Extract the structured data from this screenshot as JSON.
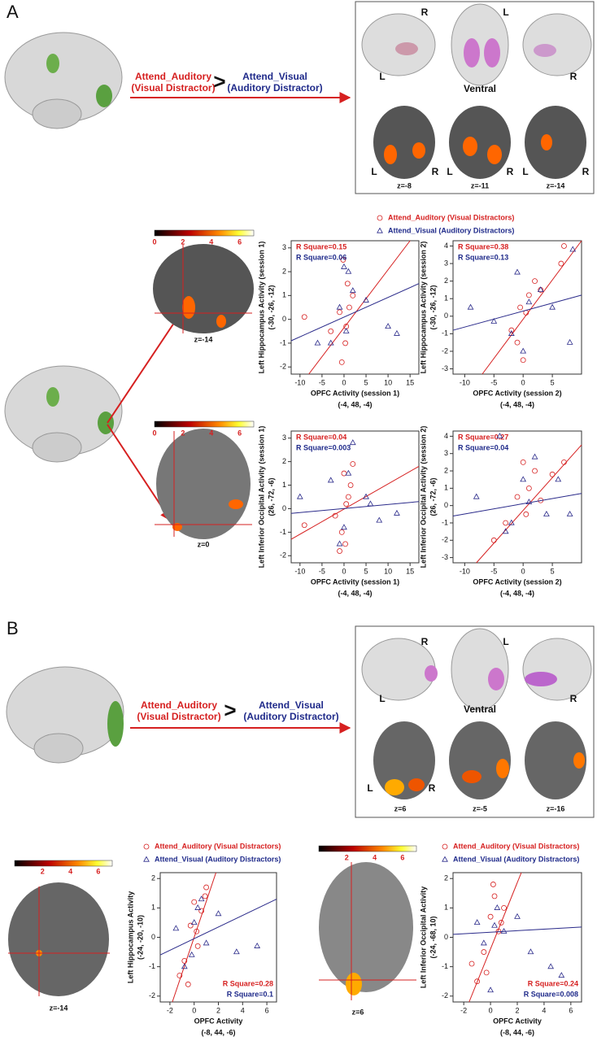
{
  "panel_a": {
    "label": "A",
    "contrast": {
      "left": "Attend_Auditory",
      "left_note": "(Visual Distractor)",
      "operator": ">",
      "right": "Attend_Visual",
      "right_note": "(Auditory Distractor)"
    },
    "view_labels": [
      "R",
      "L",
      "L",
      "R",
      "Ventral"
    ],
    "slice_labels": [
      "z=-8",
      "z=-11",
      "z=-14"
    ],
    "side_labels": [
      "L",
      "R",
      "L",
      "R",
      "L",
      "R"
    ],
    "map_slices": [
      "z=-14",
      "z=0"
    ],
    "colorbar_ticks": [
      0,
      2,
      4,
      6
    ],
    "legend": [
      "Attend_Auditory (Visual Distractors)",
      "Attend_Visual (Auditory Distractors)"
    ]
  },
  "panel_b": {
    "label": "B",
    "contrast": {
      "left": "Attend_Auditory",
      "left_note": "(Visual Distractor)",
      "operator": ">",
      "right": "Attend_Visual",
      "right_note": "(Auditory Distractor)"
    },
    "view_labels": [
      "R",
      "L",
      "L",
      "R",
      "Ventral"
    ],
    "slice_labels": [
      "z=6",
      "z=-5",
      "z=-16"
    ],
    "side_labels": [
      "L",
      "R"
    ],
    "map_slices": [
      "z=-14",
      "z=6"
    ],
    "colorbar_ticks": [
      2,
      4,
      6
    ]
  },
  "chart_data": [
    {
      "type": "scatter",
      "ylabel": [
        "Left Hippocampus Activity (session 1)",
        "(-30, -26, -12)"
      ],
      "xlabel": [
        "OPFC Activity (session 1)",
        "(-4, 48, -4)"
      ],
      "xlim": [
        -12,
        17
      ],
      "ylim": [
        -2.3,
        3.3
      ],
      "xticks": [
        -10,
        -5,
        0,
        5,
        10,
        15
      ],
      "yticks": [
        -2,
        -1,
        0,
        1,
        2,
        3
      ],
      "series": [
        {
          "marker": "circle",
          "color": "#d62020",
          "x": [
            -0.5,
            0.3,
            1.2,
            -1,
            0.8,
            -0.2,
            2,
            -3,
            0.5,
            -9
          ],
          "y": [
            -1.8,
            -1,
            0.5,
            0.3,
            1.5,
            2.5,
            1,
            -0.5,
            -0.3,
            0.1
          ],
          "fit_x": [
            -8,
            15
          ],
          "fit_y": [
            -2.3,
            3.3
          ],
          "r_square": "R Square=0.15"
        },
        {
          "marker": "triangle",
          "color": "#2a2a8a",
          "x": [
            -1,
            0.5,
            2,
            -3,
            1,
            5,
            10,
            -6,
            0,
            12
          ],
          "y": [
            0.5,
            -0.5,
            1.2,
            -1,
            2,
            0.8,
            -0.3,
            -1,
            2.2,
            -0.6
          ],
          "fit_x": [
            -12,
            17
          ],
          "fit_y": [
            -0.9,
            1.5
          ],
          "r_square": "R Square=0.06"
        }
      ]
    },
    {
      "type": "scatter",
      "ylabel": [
        "Left Hippocampus Activity (session 2)",
        "(-30, -26, -12)"
      ],
      "xlabel": [
        "OPFC Activity (session 2)",
        "(-4, 48, -4)"
      ],
      "xlim": [
        -12,
        10
      ],
      "ylim": [
        -3.3,
        4.3
      ],
      "xticks": [
        -10,
        -5,
        0,
        5
      ],
      "yticks": [
        -3,
        -2,
        -1,
        0,
        1,
        2,
        3,
        4
      ],
      "series": [
        {
          "marker": "circle",
          "color": "#d62020",
          "x": [
            -1,
            0.5,
            1,
            -2,
            2,
            3,
            7,
            0,
            -0.5,
            6.5
          ],
          "y": [
            -1.5,
            0.2,
            1.2,
            -0.8,
            2,
            1.5,
            4,
            -2.5,
            0.5,
            3
          ],
          "fit_x": [
            -7,
            10
          ],
          "fit_y": [
            -3.3,
            4.3
          ],
          "r_square": "R Square=0.38"
        },
        {
          "marker": "triangle",
          "color": "#2a2a8a",
          "x": [
            -9,
            -5,
            1,
            -2,
            3,
            5,
            8,
            0,
            -1,
            8.5
          ],
          "y": [
            0.5,
            -0.3,
            0.8,
            -1,
            1.5,
            0.5,
            -1.5,
            -2,
            2.5,
            3.8
          ],
          "fit_x": [
            -12,
            10
          ],
          "fit_y": [
            -0.8,
            1.2
          ],
          "r_square": "R Square=0.13"
        }
      ]
    },
    {
      "type": "scatter",
      "ylabel": [
        "Left Inferior Occipital Activity (session 1)",
        "(26, -72, -6)"
      ],
      "xlabel": [
        "OPFC Activity (session 1)",
        "(-4, 48, -4)"
      ],
      "xlim": [
        -12,
        17
      ],
      "ylim": [
        -2.3,
        3.3
      ],
      "xticks": [
        -10,
        -5,
        0,
        5,
        10,
        15
      ],
      "yticks": [
        -2,
        -1,
        0,
        1,
        2,
        3
      ],
      "series": [
        {
          "marker": "circle",
          "color": "#d62020",
          "x": [
            -9,
            -1,
            0,
            1,
            2,
            -0.5,
            0.5,
            1.5,
            -2,
            0.3
          ],
          "y": [
            -0.7,
            -1.8,
            1.5,
            0.5,
            1.9,
            -1,
            0.2,
            1,
            -0.3,
            -1.5
          ],
          "fit_x": [
            -12,
            17
          ],
          "fit_y": [
            -1.3,
            1.8
          ],
          "r_square": "R Square=0.04"
        },
        {
          "marker": "triangle",
          "color": "#2a2a8a",
          "x": [
            -10,
            -3,
            0,
            2,
            5,
            12,
            8,
            -1,
            1,
            6
          ],
          "y": [
            0.5,
            1.2,
            -0.8,
            2.8,
            0.5,
            -0.2,
            -0.5,
            -1.5,
            1.5,
            0.2
          ],
          "fit_x": [
            -12,
            17
          ],
          "fit_y": [
            -0.2,
            0.3
          ],
          "r_square": "R Square=0.003"
        }
      ]
    },
    {
      "type": "scatter",
      "ylabel": [
        "Left Inferior Occipital Activity (session 2)",
        "(26, -72, -6)"
      ],
      "xlabel": [
        "OPFC Activity (session 2)",
        "(-4, 48, -4)"
      ],
      "xlim": [
        -12,
        10
      ],
      "ylim": [
        -3.3,
        4.3
      ],
      "xticks": [
        -10,
        -5,
        0,
        5
      ],
      "yticks": [
        -3,
        -2,
        -1,
        0,
        1,
        2,
        3,
        4
      ],
      "series": [
        {
          "marker": "circle",
          "color": "#d62020",
          "x": [
            -3,
            -1,
            0,
            1,
            2,
            5,
            7,
            -5,
            0.5,
            3
          ],
          "y": [
            -1,
            0.5,
            2.5,
            1,
            2,
            1.8,
            2.5,
            -2,
            -0.5,
            0.3
          ],
          "fit_x": [
            -8,
            10
          ],
          "fit_y": [
            -3.3,
            3.5
          ],
          "r_square": "R Square=0.27"
        },
        {
          "marker": "triangle",
          "color": "#2a2a8a",
          "x": [
            -8,
            -2,
            0,
            1,
            4,
            6,
            8,
            -3,
            2,
            -4
          ],
          "y": [
            0.5,
            -1,
            1.5,
            0.2,
            -0.5,
            1.5,
            -0.5,
            -1.5,
            2.8,
            4
          ],
          "fit_x": [
            -12,
            10
          ],
          "fit_y": [
            -0.6,
            0.7
          ],
          "r_square": "R Square=0.04"
        }
      ]
    },
    {
      "type": "scatter",
      "ylabel": [
        "Left Hippocampus Activity",
        "(-24, -20, -10)"
      ],
      "xlabel": [
        "OPFC Activity",
        "(-8, 44, -6)"
      ],
      "xlim": [
        -2.8,
        6.8
      ],
      "ylim": [
        -2.2,
        2.2
      ],
      "xticks": [
        -2,
        0,
        2,
        4,
        6
      ],
      "yticks": [
        -2,
        -1,
        0,
        1,
        2
      ],
      "series": [
        {
          "name": "Attend_Auditory (Visual Distractors)",
          "marker": "circle",
          "color": "#d62020",
          "x": [
            -1.2,
            -0.8,
            -0.3,
            0,
            0.3,
            0.6,
            1,
            -0.5,
            0.2,
            0.9
          ],
          "y": [
            -1.3,
            -0.8,
            0.4,
            1.2,
            -0.3,
            0.9,
            1.7,
            -1.6,
            0.2,
            1.4
          ],
          "fit_x": [
            -1.8,
            1.8
          ],
          "fit_y": [
            -2.2,
            2.2
          ],
          "r_square": "R Square=0.28"
        },
        {
          "name": "Attend_Visual (Auditory Distractors)",
          "marker": "triangle",
          "color": "#2a2a8a",
          "x": [
            -1.5,
            -0.8,
            0,
            0.3,
            1,
            2,
            3.5,
            5.2,
            0.6,
            -0.2
          ],
          "y": [
            0.3,
            -1,
            0.5,
            1,
            -0.2,
            0.8,
            -0.5,
            -0.3,
            1.3,
            -0.6
          ],
          "fit_x": [
            -2.8,
            6.8
          ],
          "fit_y": [
            -0.6,
            1.3
          ],
          "r_square": "R Square=0.1"
        }
      ]
    },
    {
      "type": "scatter",
      "ylabel": [
        "Left Inferior Occipital Activity",
        "(-24, -68, 10)"
      ],
      "xlabel": [
        "OPFC Activity",
        "(-8, 44, -6)"
      ],
      "xlim": [
        -2.8,
        6.8
      ],
      "ylim": [
        -2.2,
        2.2
      ],
      "xticks": [
        -2,
        0,
        2,
        4,
        6
      ],
      "yticks": [
        -2,
        -1,
        0,
        1,
        2
      ],
      "series": [
        {
          "name": "Attend_Auditory (Visual Distractors)",
          "marker": "circle",
          "color": "#d62020",
          "x": [
            -1,
            -0.5,
            0,
            0.3,
            0.6,
            1,
            -0.3,
            0.2,
            0.8,
            -1.4
          ],
          "y": [
            -1.5,
            -0.5,
            0.7,
            1.4,
            0.2,
            1,
            -1.2,
            1.8,
            0.5,
            -0.9
          ],
          "fit_x": [
            -1.6,
            2.3
          ],
          "fit_y": [
            -2.2,
            2.2
          ],
          "r_square": "R Square=0.24"
        },
        {
          "name": "Attend_Visual (Auditory Distractors)",
          "marker": "triangle",
          "color": "#2a2a8a",
          "x": [
            -1,
            0,
            0.5,
            1,
            2,
            3,
            4.5,
            5.3,
            -0.5,
            0.3
          ],
          "y": [
            0.5,
            -1.8,
            1,
            0.2,
            0.7,
            -0.5,
            -1,
            -1.3,
            -0.2,
            0.4
          ],
          "fit_x": [
            -2.8,
            6.8
          ],
          "fit_y": [
            0.1,
            0.35
          ],
          "r_square": "R Square=0.008"
        }
      ]
    }
  ]
}
